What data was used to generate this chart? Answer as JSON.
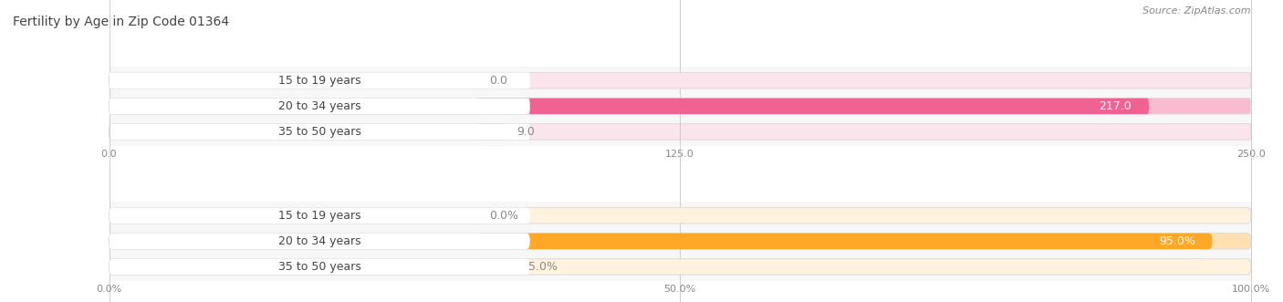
{
  "title": "Fertility by Age in Zip Code 01364",
  "source": "Source: ZipAtlas.com",
  "top_chart": {
    "categories": [
      "15 to 19 years",
      "20 to 34 years",
      "35 to 50 years"
    ],
    "values": [
      0.0,
      217.0,
      9.0
    ],
    "xlim": [
      0,
      250
    ],
    "xticks": [
      0.0,
      125.0,
      250.0
    ],
    "bar_color_main": [
      "#f48fb1",
      "#f06292",
      "#f48fb1"
    ],
    "bar_color_bg": [
      "#fce4ec",
      "#f8bbd0",
      "#fce4ec"
    ],
    "value_label_colors": [
      "#888888",
      "#ffffff",
      "#888888"
    ]
  },
  "bottom_chart": {
    "categories": [
      "15 to 19 years",
      "20 to 34 years",
      "35 to 50 years"
    ],
    "values": [
      0.0,
      95.0,
      5.0
    ],
    "xlim": [
      0,
      100
    ],
    "xticks": [
      0.0,
      50.0,
      100.0
    ],
    "xtick_labels": [
      "0.0%",
      "50.0%",
      "100.0%"
    ],
    "bar_color_main": [
      "#ffcc80",
      "#ffa726",
      "#ffcc80"
    ],
    "bar_color_bg": [
      "#fff3e0",
      "#ffe0b2",
      "#fff3e0"
    ],
    "value_label_colors": [
      "#888888",
      "#ffffff",
      "#888888"
    ]
  },
  "title_fontsize": 10,
  "source_fontsize": 8,
  "label_fontsize": 9,
  "value_fontsize": 9,
  "tick_fontsize": 8,
  "fig_bg": "#ffffff",
  "chart_bg": "#f7f7f7",
  "bar_row_bg": "#eeeeee"
}
